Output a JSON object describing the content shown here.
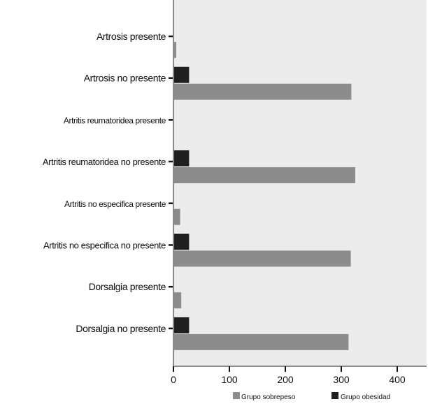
{
  "chart_data": {
    "type": "bar",
    "orientation": "horizontal",
    "categories": [
      "Artrosis presente",
      "Artrosis no presente",
      "Artritis reumatoridea presente",
      "Artritis reumatoridea no presente",
      "Artritis no especifica presente",
      "Artritis no especifica no presente",
      "Dorsalgia presente",
      "Dorsalgia no presente"
    ],
    "series": [
      {
        "name": "Grupo sobrepeso",
        "color": "#8c8c8c",
        "values": [
          5,
          318,
          0,
          325,
          12,
          317,
          14,
          313
        ]
      },
      {
        "name": "Grupo obesidad",
        "color": "#1f1f1f",
        "values": [
          0,
          28,
          0,
          28,
          0,
          28,
          0,
          28
        ]
      }
    ],
    "xlim": [
      0,
      450
    ],
    "xticks": [
      0,
      100,
      200,
      300,
      400
    ],
    "title": "",
    "xlabel": "",
    "ylabel": "",
    "legend_position": "bottom",
    "plot_background": "#ececec"
  }
}
